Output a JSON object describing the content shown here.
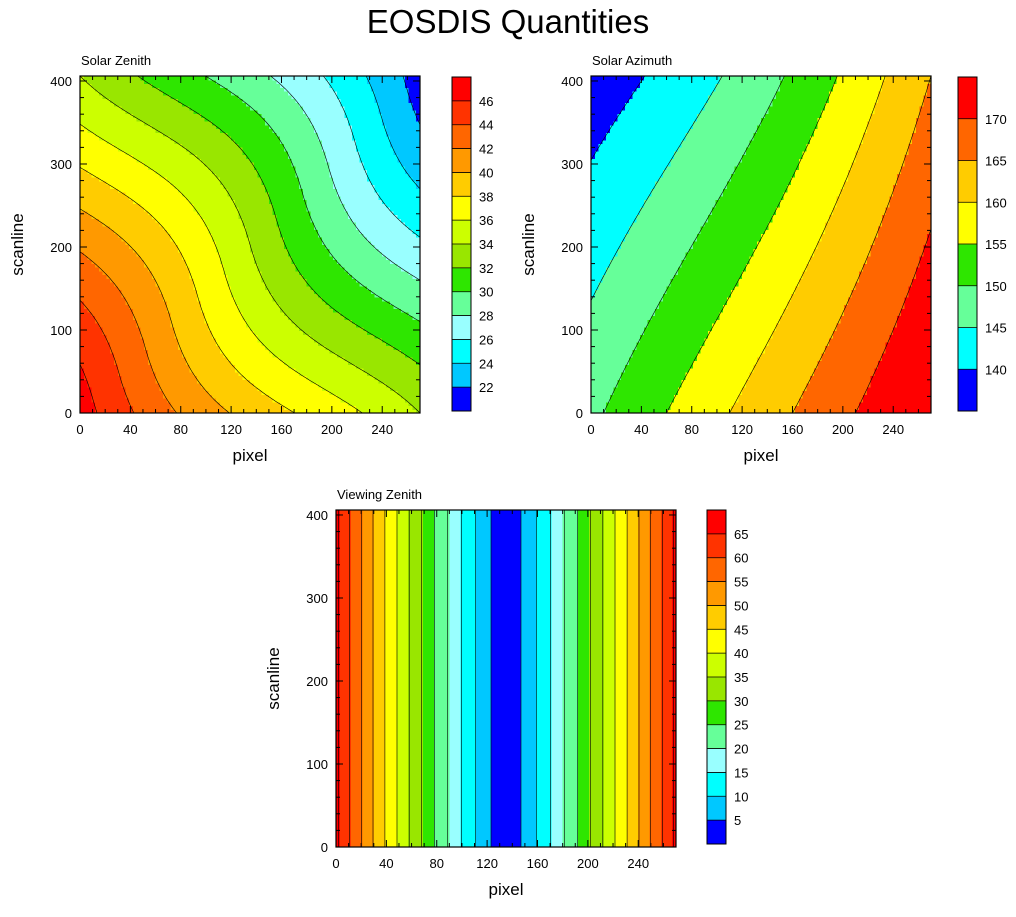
{
  "title": "EOSDIS Quantities",
  "chart_data": [
    {
      "type": "contour",
      "subtitle": "Solar Zenith",
      "xlabel": "pixel",
      "ylabel": "scanline",
      "xlim": [
        0,
        270
      ],
      "ylim": [
        0,
        406
      ],
      "xticks": [
        0,
        40,
        80,
        120,
        160,
        200,
        240
      ],
      "yticks": [
        0,
        100,
        200,
        300,
        400
      ],
      "levels": [
        22,
        24,
        26,
        28,
        30,
        32,
        34,
        36,
        38,
        40,
        42,
        44,
        46
      ],
      "colorbar_labels": [
        "22",
        "24",
        "26",
        "28",
        "30",
        "32",
        "34",
        "36",
        "38",
        "40",
        "42",
        "44",
        "46"
      ],
      "colorbar_colors": [
        "#0000ff",
        "#00c8ff",
        "#00ffff",
        "#99ffff",
        "#66ff99",
        "#2ee600",
        "#99e600",
        "#ccff00",
        "#ffff00",
        "#ffcc00",
        "#ff9900",
        "#ff6600",
        "#ff3300",
        "#ff0000"
      ],
      "field": {
        "corners": {
          "x0_y0": 47,
          "x270_y0": 38,
          "x0_y406": 38,
          "x270_y406": 21
        },
        "min_along_diagonal": "top-right",
        "max_along_diagonal": "bottom-left"
      }
    },
    {
      "type": "contour",
      "subtitle": "Solar Azimuth",
      "xlabel": "pixel",
      "ylabel": "scanline",
      "xlim": [
        0,
        270
      ],
      "ylim": [
        0,
        406
      ],
      "xticks": [
        0,
        40,
        80,
        120,
        160,
        200,
        240
      ],
      "yticks": [
        0,
        100,
        200,
        300,
        400
      ],
      "levels": [
        140,
        145,
        150,
        155,
        160,
        165,
        170
      ],
      "colorbar_labels": [
        "140",
        "145",
        "150",
        "155",
        "160",
        "165",
        "170"
      ],
      "colorbar_colors": [
        "#0000ff",
        "#00ffff",
        "#66ff99",
        "#2ee600",
        "#ffff00",
        "#ffcc00",
        "#ff6600",
        "#ff0000"
      ],
      "field": {
        "corners": {
          "x0_y0": 149,
          "x270_y0": 176,
          "x0_y406": 137,
          "x270_y406": 165
        }
      }
    },
    {
      "type": "contour",
      "subtitle": "Viewing Zenith",
      "xlabel": "pixel",
      "ylabel": "scanline",
      "xlim": [
        0,
        270
      ],
      "ylim": [
        0,
        406
      ],
      "xticks": [
        0,
        40,
        80,
        120,
        160,
        200,
        240
      ],
      "yticks": [
        0,
        100,
        200,
        300,
        400
      ],
      "levels": [
        5,
        10,
        15,
        20,
        25,
        30,
        35,
        40,
        45,
        50,
        55,
        60,
        65
      ],
      "colorbar_labels": [
        "5",
        "10",
        "15",
        "20",
        "25",
        "30",
        "35",
        "40",
        "45",
        "50",
        "55",
        "60",
        "65"
      ],
      "colorbar_colors": [
        "#0000ff",
        "#00c8ff",
        "#00ffff",
        "#99ffff",
        "#66ff99",
        "#2ee600",
        "#99e600",
        "#ccff00",
        "#ffff00",
        "#ffcc00",
        "#ff9900",
        "#ff6600",
        "#ff3300",
        "#ff0000"
      ],
      "field": {
        "nadir_pixel": 135,
        "edge_value": 66,
        "depends_on": "pixel only"
      }
    }
  ]
}
